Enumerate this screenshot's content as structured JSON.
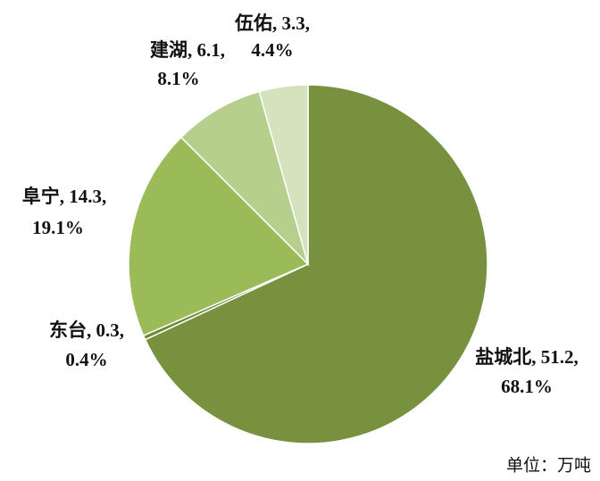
{
  "chart_data": {
    "type": "pie",
    "categories": [
      "盐城北",
      "东台",
      "阜宁",
      "建湖",
      "伍佑"
    ],
    "values": [
      51.2,
      0.3,
      14.3,
      6.1,
      3.3
    ],
    "percentages": [
      68.1,
      0.4,
      19.1,
      8.1,
      4.4
    ],
    "percentage_labels": [
      "68.1%",
      "0.4%",
      "19.1%",
      "8.1%",
      "4.4%"
    ],
    "colors": [
      "#77913f",
      "#6e8a38",
      "#9bbb59",
      "#b6cf8c",
      "#d4e3be"
    ],
    "unit_note": "单位：万吨"
  }
}
